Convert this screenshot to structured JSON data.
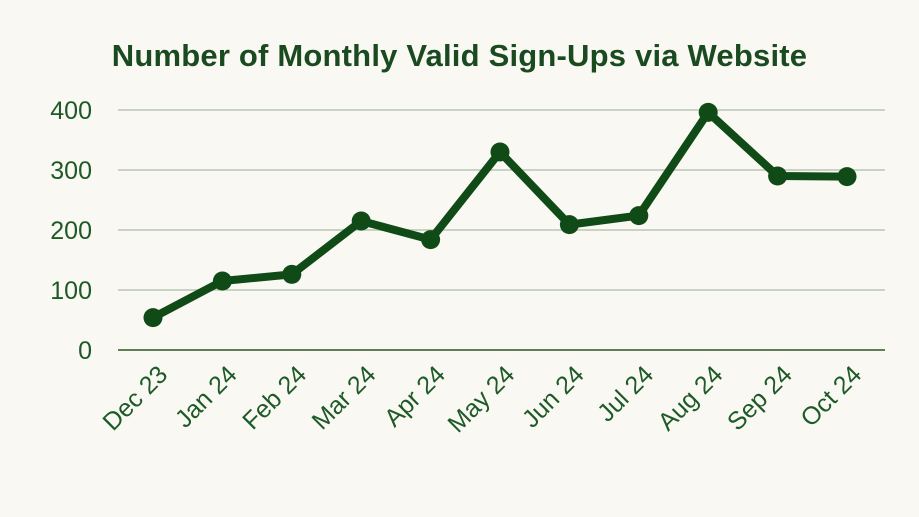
{
  "chart_data": {
    "type": "line",
    "title": "Number of Monthly Valid Sign-Ups via Website",
    "xlabel": "",
    "ylabel": "",
    "categories": [
      "Dec 23",
      "Jan 24",
      "Feb 24",
      "Mar 24",
      "Apr 24",
      "May 24",
      "Jun 24",
      "Jul 24",
      "Aug 24",
      "Sep 24",
      "Oct 24"
    ],
    "series": [
      {
        "values": [
          54,
          115,
          126,
          215,
          184,
          330,
          209,
          224,
          396,
          290,
          289
        ]
      }
    ],
    "ylim": [
      0,
      400
    ],
    "yticks": [
      0,
      100,
      200,
      300,
      400
    ],
    "grid": true,
    "legend": "none",
    "colors": {
      "line": "#0f4a17",
      "grid": "#c9d3c3",
      "axis": "#5e7f55",
      "text": "#1e5a28"
    }
  }
}
